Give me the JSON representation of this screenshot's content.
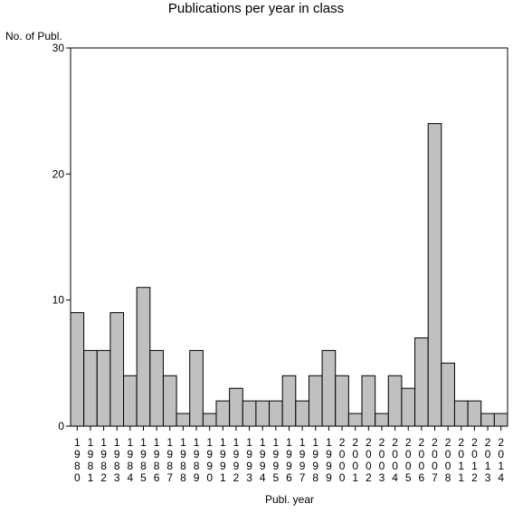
{
  "chart_data": {
    "type": "bar",
    "title": "Publications per year in class",
    "ylabel": "No. of Publ.",
    "xlabel": "Publ. year",
    "ylim": [
      0,
      30
    ],
    "yticks": [
      0,
      10,
      20,
      30
    ],
    "bar_color": "#c0c0c0",
    "categories": [
      "1980",
      "1981",
      "1982",
      "1983",
      "1984",
      "1985",
      "1986",
      "1987",
      "1988",
      "1989",
      "1990",
      "1991",
      "1992",
      "1993",
      "1994",
      "1995",
      "1996",
      "1997",
      "1998",
      "1999",
      "2000",
      "2001",
      "2002",
      "2003",
      "2004",
      "2005",
      "2006",
      "2007",
      "2008",
      "2011",
      "2012",
      "2013",
      "2014"
    ],
    "values": [
      9,
      6,
      6,
      9,
      4,
      11,
      6,
      4,
      1,
      6,
      1,
      2,
      3,
      2,
      2,
      2,
      4,
      2,
      4,
      6,
      4,
      1,
      4,
      1,
      4,
      3,
      7,
      24,
      5,
      2,
      2,
      1,
      1
    ]
  }
}
